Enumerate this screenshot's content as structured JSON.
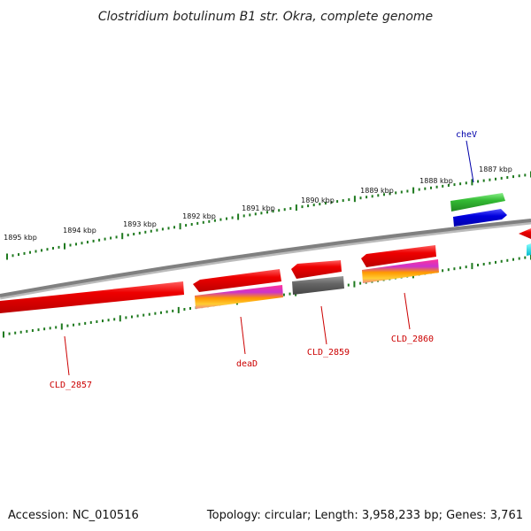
{
  "title": "Clostridium botulinum B1 str. Okra, complete genome",
  "footer": {
    "accession": "Accession: NC_010516",
    "summary": "Topology: circular; Length: 3,958,233 bp; Genes: 3,761"
  },
  "scale_labels": [
    "1895 kbp",
    "1894 kbp",
    "1893 kbp",
    "1892 kbp",
    "1891 kbp",
    "1890 kbp",
    "1889 kbp",
    "1888 kbp",
    "1887 kbp"
  ],
  "gene_labels": {
    "cheV": "cheV",
    "deaD": "deaD",
    "CLD_2857": "CLD_2857",
    "CLD_2859": "CLD_2859",
    "CLD_2860": "CLD_2860"
  },
  "colors": {
    "backbone": "#8a8a8a",
    "scale_ticks": "#1f7a1f",
    "cds_red": "#e00000",
    "cds_green": "#33bb33",
    "cds_blue": "#0000dd",
    "cds_gray": "#666666",
    "cds_cyan": "#00dddd",
    "label_red": "#cc0000",
    "label_blue": "#0000aa"
  }
}
